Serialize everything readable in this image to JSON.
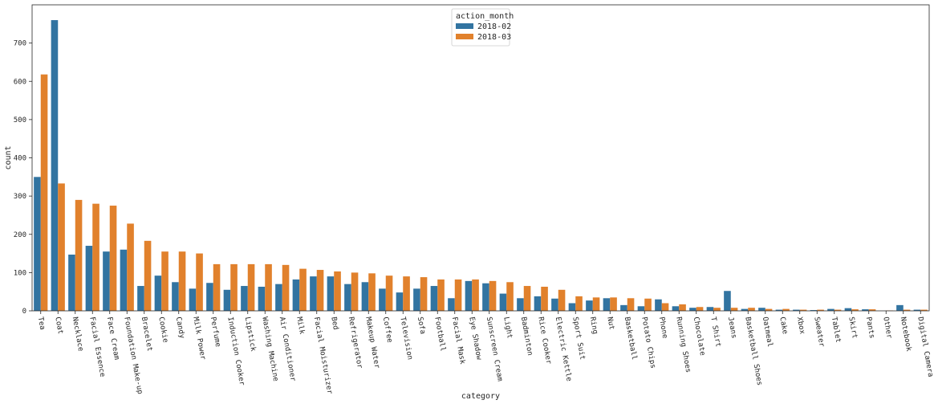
{
  "chart_data": {
    "type": "bar",
    "xlabel": "category",
    "ylabel": "count",
    "ylim": [
      0,
      800
    ],
    "yticks": [
      0,
      100,
      200,
      300,
      400,
      500,
      600,
      700
    ],
    "grid": false,
    "legend": {
      "title": "action_month",
      "placement": "top-center"
    },
    "categories": [
      "Tea",
      "Coat",
      "Necklace",
      "Facial Essence",
      "Face Cream",
      "Foundation Make-up",
      "Bracelet",
      "Cookie",
      "Candy",
      "Milk Power",
      "Perfume",
      "Induction Cooker",
      "Lipstick",
      "Washing Machine",
      "Air Conditioner",
      "Milk",
      "Facial Moisturizer",
      "Bed",
      "Refrigerator",
      "Makeup Water",
      "Coffee",
      "Television",
      "Sofa",
      "Football",
      "Facial Mask",
      "Eye Shadow",
      "Sunscreen Cream",
      "Light",
      "Badminton",
      "Rice Cooker",
      "Electric Kettle",
      "Sport Suit",
      "Ring",
      "Nut",
      "Basketball",
      "Potato Chips",
      "Phone",
      "Running Shoes",
      "Chocolate",
      "T Shirt",
      "Jeans",
      "Basketball Shoes",
      "Oatmeal",
      "Cake",
      "Xbox",
      "Sweater",
      "Tablet",
      "Skirt",
      "Pants",
      "Other",
      "Notebook",
      "Digital Camera"
    ],
    "series": [
      {
        "name": "2018-02",
        "color": "#3274a1",
        "values": [
          350,
          760,
          147,
          170,
          155,
          160,
          65,
          92,
          75,
          58,
          73,
          55,
          65,
          63,
          70,
          82,
          90,
          90,
          70,
          75,
          58,
          48,
          58,
          65,
          33,
          78,
          72,
          45,
          33,
          38,
          32,
          20,
          27,
          33,
          15,
          12,
          30,
          12,
          8,
          10,
          52,
          5,
          8,
          3,
          3,
          2,
          5,
          7,
          4,
          0,
          15,
          3
        ]
      },
      {
        "name": "2018-03",
        "color": "#e1812c",
        "values": [
          618,
          333,
          290,
          280,
          275,
          228,
          183,
          155,
          155,
          150,
          122,
          122,
          122,
          122,
          120,
          110,
          107,
          103,
          100,
          98,
          92,
          90,
          88,
          82,
          82,
          82,
          78,
          75,
          65,
          63,
          55,
          38,
          35,
          35,
          33,
          32,
          20,
          17,
          10,
          8,
          8,
          8,
          5,
          5,
          3,
          3,
          3,
          4,
          4,
          1,
          3,
          3
        ]
      }
    ]
  }
}
